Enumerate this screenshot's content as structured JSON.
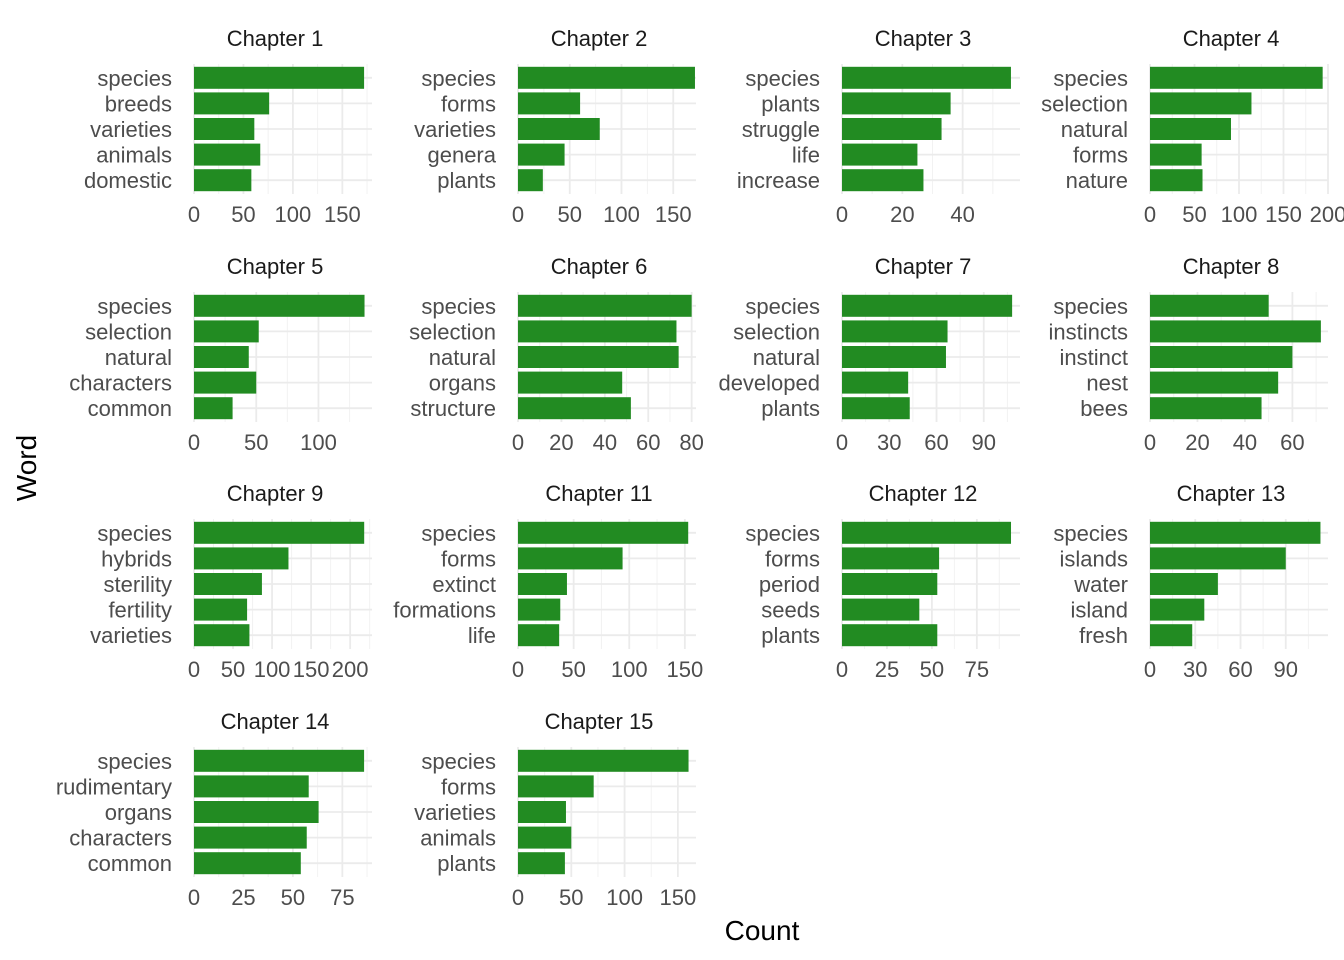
{
  "chart_data": {
    "type": "bar",
    "orientation": "horizontal",
    "facet_layout": "4 columns, free scales",
    "xlabel": "Count",
    "ylabel": "Word",
    "bar_color": "#228b22",
    "grid": true,
    "legend": "none",
    "panels": [
      {
        "title": "Chapter 1",
        "categories": [
          "species",
          "breeds",
          "varieties",
          "animals",
          "domestic"
        ],
        "values": [
          172,
          76,
          61,
          67,
          58
        ],
        "xlim": [
          0,
          180
        ],
        "ticks": [
          0,
          50,
          100,
          150
        ]
      },
      {
        "title": "Chapter 2",
        "categories": [
          "species",
          "forms",
          "varieties",
          "genera",
          "plants"
        ],
        "values": [
          171,
          60,
          79,
          45,
          24
        ],
        "xlim": [
          0,
          172
        ],
        "ticks": [
          0,
          50,
          100,
          150
        ]
      },
      {
        "title": "Chapter 3",
        "categories": [
          "species",
          "plants",
          "struggle",
          "life",
          "increase"
        ],
        "values": [
          56,
          36,
          33,
          25,
          27
        ],
        "xlim": [
          0,
          59
        ],
        "ticks": [
          0,
          20,
          40
        ]
      },
      {
        "title": "Chapter 4",
        "categories": [
          "species",
          "selection",
          "natural",
          "forms",
          "nature"
        ],
        "values": [
          194,
          114,
          91,
          58,
          59
        ],
        "xlim": [
          0,
          200
        ],
        "ticks": [
          0,
          50,
          100,
          150,
          200
        ]
      },
      {
        "title": "Chapter 5",
        "categories": [
          "species",
          "selection",
          "natural",
          "characters",
          "common"
        ],
        "values": [
          137,
          52,
          44,
          50,
          31
        ],
        "xlim": [
          0,
          143
        ],
        "ticks": [
          0,
          50,
          100
        ]
      },
      {
        "title": "Chapter 6",
        "categories": [
          "species",
          "selection",
          "natural",
          "organs",
          "structure"
        ],
        "values": [
          80,
          73,
          74,
          48,
          52
        ],
        "xlim": [
          0,
          82
        ],
        "ticks": [
          0,
          20,
          40,
          60,
          80
        ]
      },
      {
        "title": "Chapter 7",
        "categories": [
          "species",
          "selection",
          "natural",
          "developed",
          "plants"
        ],
        "values": [
          108,
          67,
          66,
          42,
          43
        ],
        "xlim": [
          0,
          113
        ],
        "ticks": [
          0,
          30,
          60,
          90
        ]
      },
      {
        "title": "Chapter 8",
        "categories": [
          "species",
          "instincts",
          "instinct",
          "nest",
          "bees"
        ],
        "values": [
          50,
          72,
          60,
          54,
          47
        ],
        "xlim": [
          0,
          75
        ],
        "ticks": [
          0,
          20,
          40,
          60
        ]
      },
      {
        "title": "Chapter 9",
        "categories": [
          "species",
          "hybrids",
          "sterility",
          "fertility",
          "varieties"
        ],
        "values": [
          218,
          121,
          87,
          68,
          71
        ],
        "xlim": [
          0,
          228
        ],
        "ticks": [
          0,
          50,
          100,
          150,
          200
        ]
      },
      {
        "title": "Chapter 11",
        "categories": [
          "species",
          "forms",
          "extinct",
          "formations",
          "life"
        ],
        "values": [
          153,
          94,
          44,
          38,
          37
        ],
        "xlim": [
          0,
          160
        ],
        "ticks": [
          0,
          50,
          100,
          150
        ]
      },
      {
        "title": "Chapter 12",
        "categories": [
          "species",
          "forms",
          "period",
          "seeds",
          "plants"
        ],
        "values": [
          94,
          54,
          53,
          43,
          53
        ],
        "xlim": [
          0,
          99
        ],
        "ticks": [
          0,
          25,
          50,
          75
        ]
      },
      {
        "title": "Chapter 13",
        "categories": [
          "species",
          "islands",
          "water",
          "island",
          "fresh"
        ],
        "values": [
          113,
          90,
          45,
          36,
          28
        ],
        "xlim": [
          0,
          118
        ],
        "ticks": [
          0,
          30,
          60,
          90
        ]
      },
      {
        "title": "Chapter 14",
        "categories": [
          "species",
          "rudimentary",
          "organs",
          "characters",
          "common"
        ],
        "values": [
          86,
          58,
          63,
          57,
          54
        ],
        "xlim": [
          0,
          90
        ],
        "ticks": [
          0,
          25,
          50,
          75
        ]
      },
      {
        "title": "Chapter 15",
        "categories": [
          "species",
          "forms",
          "varieties",
          "animals",
          "plants"
        ],
        "values": [
          160,
          71,
          45,
          50,
          44
        ],
        "xlim": [
          0,
          167
        ],
        "ticks": [
          0,
          50,
          100,
          150
        ]
      }
    ]
  }
}
